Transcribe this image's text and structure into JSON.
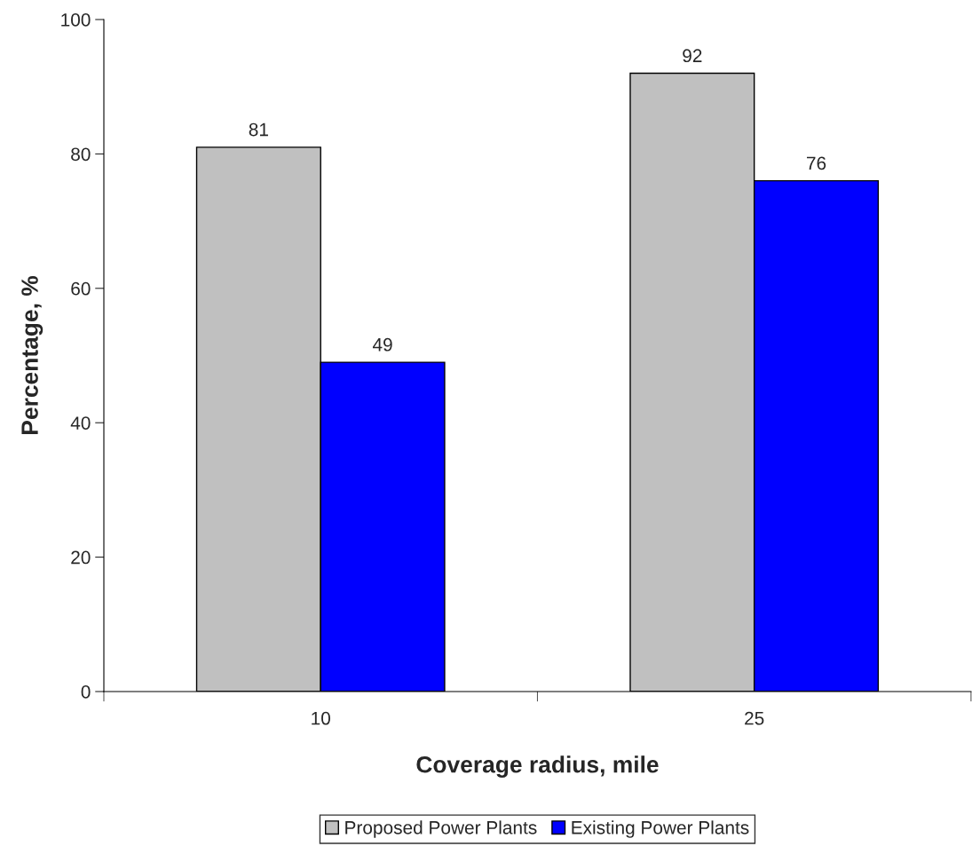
{
  "chart_data": {
    "type": "bar",
    "xlabel": "Coverage radius, mile",
    "ylabel": "Percentage, %",
    "categories": [
      "10",
      "25"
    ],
    "series": [
      {
        "name": "Proposed Power Plants",
        "color": "#c0c0c0",
        "values": [
          81,
          92
        ]
      },
      {
        "name": "Existing Power Plants",
        "color": "#0000ff",
        "values": [
          49,
          76
        ]
      }
    ],
    "ylim": [
      0,
      100
    ],
    "yticks": [
      0,
      20,
      40,
      60,
      80,
      100
    ],
    "grid": false,
    "legend": "bottom",
    "data_labels": true
  }
}
